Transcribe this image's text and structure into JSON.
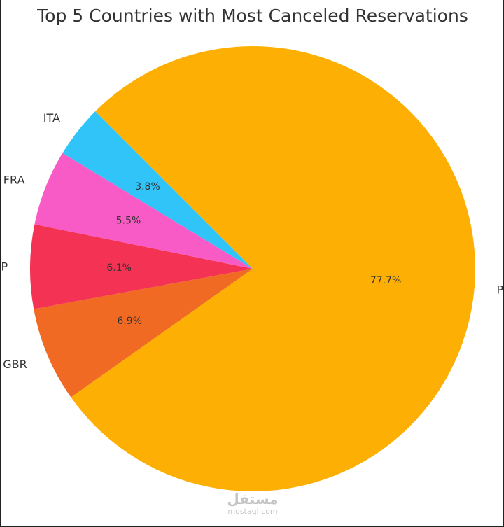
{
  "chart_data": {
    "type": "pie",
    "title": "Top 5 Countries with Most Canceled Reservations",
    "labels": [
      "PRT",
      "GBR",
      "ESP",
      "FRA",
      "ITA"
    ],
    "values": [
      77.7,
      6.9,
      6.1,
      5.5,
      3.8
    ],
    "pct_labels": [
      "77.7%",
      "6.9%",
      "6.1%",
      "5.5%",
      "3.8%"
    ],
    "colors": [
      "#fdb003",
      "#f06a24",
      "#f43254",
      "#f85bc6",
      "#31c4f9"
    ],
    "start_angle_deg": 135,
    "direction": "clockwise",
    "legend": "none"
  },
  "watermark": {
    "logo_text": "مستقل",
    "site": "mostaql.com"
  }
}
